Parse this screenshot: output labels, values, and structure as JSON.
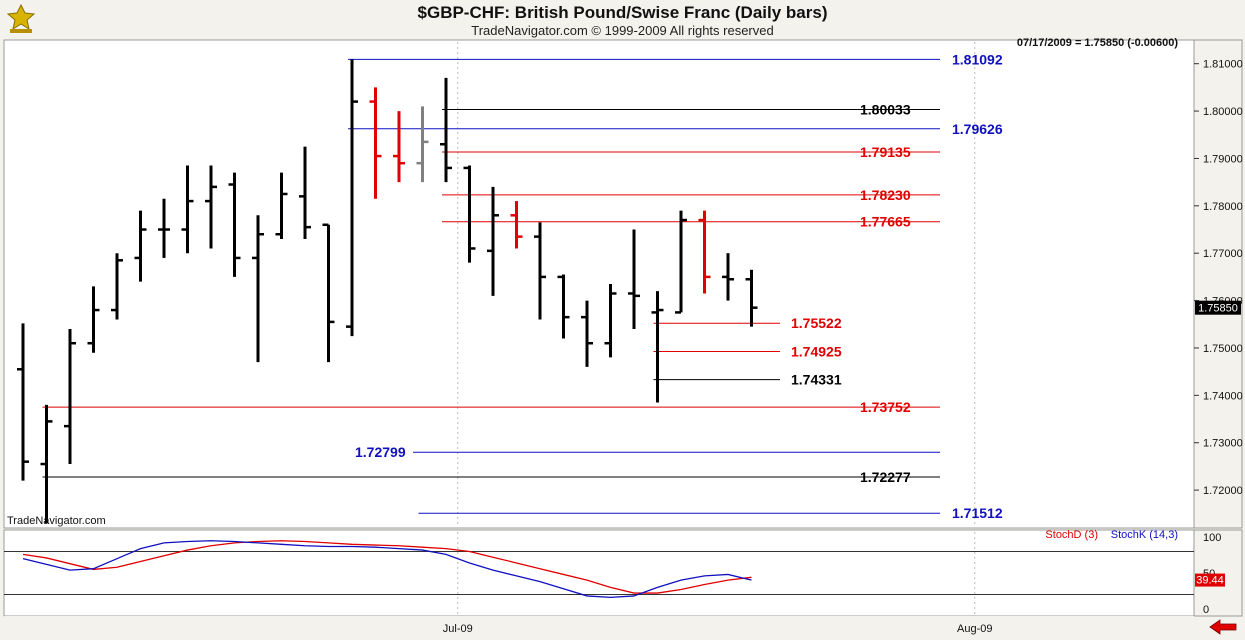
{
  "header": {
    "title": "$GBP-CHF:  British Pound/Swise Franc  (Daily bars)",
    "subtitle": "TradeNavigator.com © 1999-2009 All rights reserved"
  },
  "info": {
    "readout": "07/17/2009 = 1.75850 (-0.00600)",
    "last_price": "1.75850",
    "watermark": "TradeNavigator.com"
  },
  "colors": {
    "background": "#f3f2ec",
    "plot_bg": "#ffffff",
    "bar_up": "#000000",
    "bar_red": "#e00000",
    "bar_gray": "#808080",
    "blue_level": "#1010c0",
    "red_level": "#e00000",
    "black_level": "#000000"
  },
  "chart_data": [
    {
      "type": "ohlc",
      "ylim": [
        1.712,
        1.815
      ],
      "y_ticks": [
        "1.72000",
        "1.73000",
        "1.74000",
        "1.75000",
        "1.76000",
        "1.77000",
        "1.78000",
        "1.79000",
        "1.80000",
        "1.81000"
      ],
      "x_ticks": [
        {
          "label": "Jul-09",
          "index": 18.5
        },
        {
          "label": "Aug-09",
          "index": 40.5
        }
      ],
      "bars": [
        {
          "o": 1.7455,
          "h": 1.7552,
          "l": 1.722,
          "c": 1.726,
          "color": "black"
        },
        {
          "o": 1.7255,
          "h": 1.738,
          "l": 1.713,
          "c": 1.7345,
          "color": "black"
        },
        {
          "o": 1.7335,
          "h": 1.754,
          "l": 1.7255,
          "c": 1.751,
          "color": "black"
        },
        {
          "o": 1.751,
          "h": 1.763,
          "l": 1.749,
          "c": 1.758,
          "color": "black"
        },
        {
          "o": 1.758,
          "h": 1.77,
          "l": 1.756,
          "c": 1.7685,
          "color": "black"
        },
        {
          "o": 1.769,
          "h": 1.779,
          "l": 1.764,
          "c": 1.775,
          "color": "black"
        },
        {
          "o": 1.775,
          "h": 1.7815,
          "l": 1.769,
          "c": 1.775,
          "color": "black"
        },
        {
          "o": 1.775,
          "h": 1.7885,
          "l": 1.77,
          "c": 1.781,
          "color": "black"
        },
        {
          "o": 1.781,
          "h": 1.7885,
          "l": 1.771,
          "c": 1.784,
          "color": "black"
        },
        {
          "o": 1.7845,
          "h": 1.787,
          "l": 1.765,
          "c": 1.769,
          "color": "black"
        },
        {
          "o": 1.769,
          "h": 1.778,
          "l": 1.747,
          "c": 1.774,
          "color": "black"
        },
        {
          "o": 1.774,
          "h": 1.787,
          "l": 1.773,
          "c": 1.7825,
          "color": "black"
        },
        {
          "o": 1.782,
          "h": 1.7925,
          "l": 1.773,
          "c": 1.7755,
          "color": "black"
        },
        {
          "o": 1.776,
          "h": 1.776,
          "l": 1.747,
          "c": 1.7555,
          "color": "black"
        },
        {
          "o": 1.7545,
          "h": 1.8109,
          "l": 1.7525,
          "c": 1.802,
          "color": "black"
        },
        {
          "o": 1.802,
          "h": 1.805,
          "l": 1.7815,
          "c": 1.7905,
          "color": "red"
        },
        {
          "o": 1.7905,
          "h": 1.8,
          "l": 1.785,
          "c": 1.789,
          "color": "red"
        },
        {
          "o": 1.789,
          "h": 1.801,
          "l": 1.785,
          "c": 1.7935,
          "color": "gray"
        },
        {
          "o": 1.793,
          "h": 1.807,
          "l": 1.785,
          "c": 1.788,
          "color": "black"
        },
        {
          "o": 1.788,
          "h": 1.7885,
          "l": 1.768,
          "c": 1.771,
          "color": "black"
        },
        {
          "o": 1.7705,
          "h": 1.784,
          "l": 1.761,
          "c": 1.778,
          "color": "black"
        },
        {
          "o": 1.778,
          "h": 1.781,
          "l": 1.771,
          "c": 1.7735,
          "color": "red"
        },
        {
          "o": 1.7735,
          "h": 1.7765,
          "l": 1.756,
          "c": 1.765,
          "color": "black"
        },
        {
          "o": 1.765,
          "h": 1.7655,
          "l": 1.752,
          "c": 1.7565,
          "color": "black"
        },
        {
          "o": 1.7565,
          "h": 1.76,
          "l": 1.746,
          "c": 1.751,
          "color": "black"
        },
        {
          "o": 1.751,
          "h": 1.7635,
          "l": 1.748,
          "c": 1.7615,
          "color": "black"
        },
        {
          "o": 1.7615,
          "h": 1.775,
          "l": 1.754,
          "c": 1.761,
          "color": "black"
        },
        {
          "o": 1.7575,
          "h": 1.762,
          "l": 1.7385,
          "c": 1.758,
          "color": "black"
        },
        {
          "o": 1.7575,
          "h": 1.779,
          "l": 1.7575,
          "c": 1.777,
          "color": "black"
        },
        {
          "o": 1.777,
          "h": 1.779,
          "l": 1.7615,
          "c": 1.765,
          "color": "red"
        },
        {
          "o": 1.765,
          "h": 1.77,
          "l": 1.76,
          "c": 1.7645,
          "color": "black"
        },
        {
          "o": 1.7645,
          "h": 1.7665,
          "l": 1.7545,
          "c": 1.7585,
          "color": "black"
        }
      ],
      "levels": [
        {
          "value": 1.81092,
          "label": "1.81092",
          "color": "blue",
          "from": 14,
          "label_side": "right"
        },
        {
          "value": 1.80033,
          "label": "1.80033",
          "color": "black",
          "from": 18,
          "label_side": "right"
        },
        {
          "value": 1.79626,
          "label": "1.79626",
          "color": "blue",
          "from": 14,
          "label_side": "right"
        },
        {
          "value": 1.79135,
          "label": "1.79135",
          "color": "red",
          "from": 18,
          "label_side": "right"
        },
        {
          "value": 1.7823,
          "label": "1.78230",
          "color": "red",
          "from": 18,
          "label_side": "right"
        },
        {
          "value": 1.77665,
          "label": "1.77665",
          "color": "red",
          "from": 18,
          "label_side": "right"
        },
        {
          "value": 1.75522,
          "label": "1.75522",
          "color": "red",
          "from": 27,
          "label_side": "mid"
        },
        {
          "value": 1.74925,
          "label": "1.74925",
          "color": "red",
          "from": 27,
          "label_side": "mid"
        },
        {
          "value": 1.74331,
          "label": "1.74331",
          "color": "black",
          "from": 27,
          "label_side": "mid"
        },
        {
          "value": 1.73752,
          "label": "1.73752",
          "color": "red",
          "from": 1,
          "label_side": "right"
        },
        {
          "value": 1.72799,
          "label": "1.72799",
          "color": "blue",
          "from": 17,
          "label_side": "left"
        },
        {
          "value": 1.72277,
          "label": "1.72277",
          "color": "black",
          "from": 1,
          "label_side": "right"
        },
        {
          "value": 1.71512,
          "label": "1.71512",
          "color": "blue",
          "from": 17,
          "label_side": "right"
        }
      ]
    },
    {
      "type": "line",
      "ylim": [
        -10,
        110
      ],
      "y_ticks": [
        "100",
        "50",
        "0"
      ],
      "reference_lines": [
        80,
        20
      ],
      "legend": [
        {
          "name": "StochD (3)",
          "color": "#e00000"
        },
        {
          "name": "StochK (14,3)",
          "color": "#1010c0"
        }
      ],
      "last_value": "39.44",
      "series": [
        {
          "name": "StochD (3)",
          "color": "red",
          "values": [
            76,
            71,
            63,
            55,
            58,
            66,
            74,
            82,
            88,
            92,
            94,
            95,
            94,
            92,
            90,
            89,
            88,
            86,
            84,
            80,
            72,
            64,
            56,
            48,
            40,
            30,
            22,
            22,
            27,
            34,
            40,
            44
          ]
        },
        {
          "name": "StochK (14,3)",
          "color": "blue",
          "values": [
            70,
            62,
            54,
            56,
            70,
            84,
            92,
            94,
            95,
            94,
            92,
            90,
            88,
            87,
            87,
            86,
            84,
            82,
            76,
            64,
            54,
            46,
            38,
            28,
            18,
            16,
            18,
            30,
            40,
            46,
            48,
            40
          ]
        }
      ]
    }
  ]
}
